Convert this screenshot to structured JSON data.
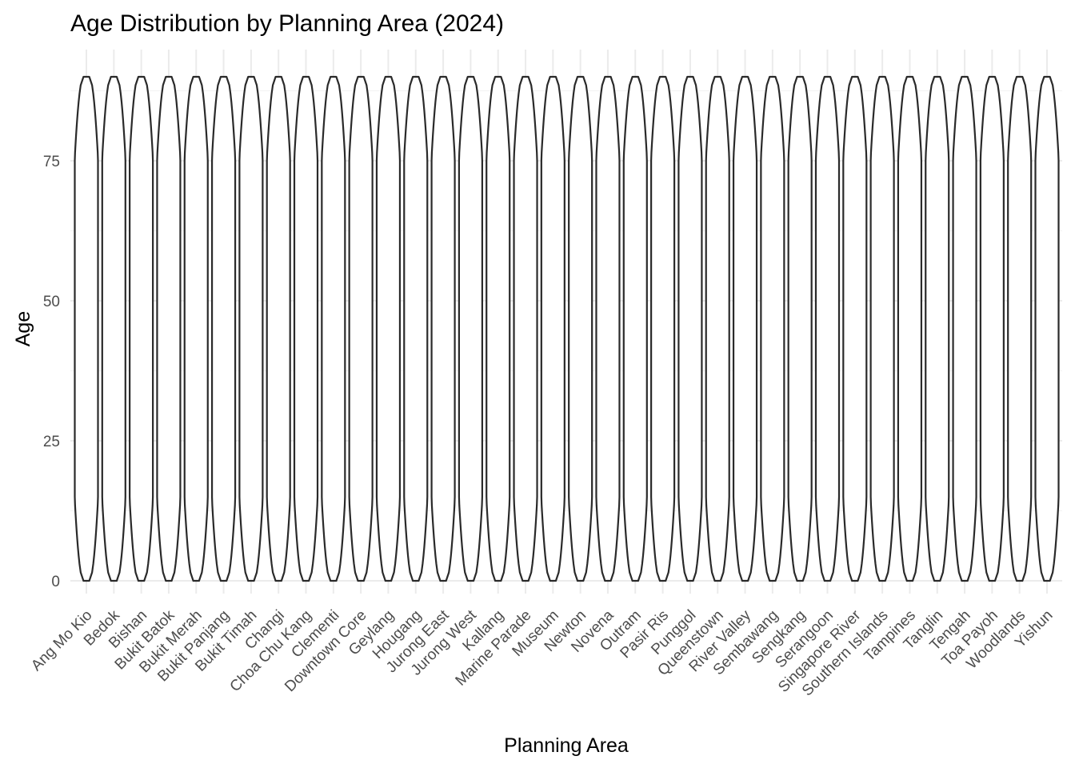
{
  "chart_data": {
    "type": "violin",
    "title": "Age Distribution by Planning Area (2024)",
    "xlabel": "Planning Area",
    "ylabel": "Age",
    "categories": [
      "Ang Mo Kio",
      "Bedok",
      "Bishan",
      "Bukit Batok",
      "Bukit Merah",
      "Bukit Panjang",
      "Bukit Timah",
      "Changi",
      "Choa Chu Kang",
      "Clementi",
      "Downtown Core",
      "Geylang",
      "Hougang",
      "Jurong East",
      "Jurong West",
      "Kallang",
      "Marine Parade",
      "Museum",
      "Newton",
      "Novena",
      "Outram",
      "Pasir Ris",
      "Punggol",
      "Queenstown",
      "River Valley",
      "Sembawang",
      "Sengkang",
      "Serangoon",
      "Singapore River",
      "Southern Islands",
      "Tampines",
      "Tanglin",
      "Tengah",
      "Toa Payoh",
      "Woodlands",
      "Yishun"
    ],
    "y_range_per_category": [
      0,
      90
    ],
    "yticks": [
      0,
      25,
      50,
      75
    ],
    "ylim": [
      -5,
      95
    ],
    "grid": true,
    "legend": "none",
    "colors": {
      "outline": "#2a2a2a",
      "fill": "#ffffff",
      "grid": "#ebebeb"
    }
  }
}
